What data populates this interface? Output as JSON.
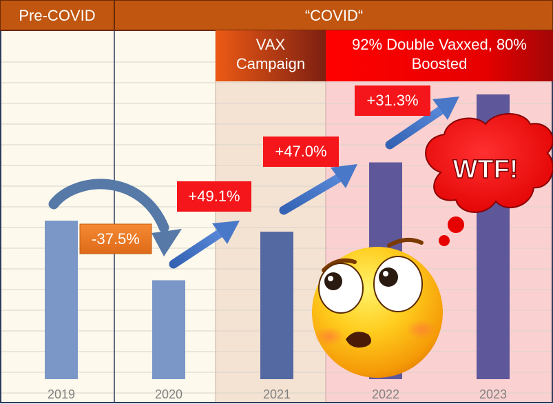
{
  "header": {
    "pre_covid": "Pre-COVID",
    "covid": "“COVID“"
  },
  "phases": {
    "vax": "VAX\nCampaign",
    "boosted": "92% Double Vaxxed, 80%\nBoosted"
  },
  "exclamation": "WTF!",
  "chart_data": {
    "type": "bar",
    "categories": [
      "2019",
      "2020",
      "2021",
      "2022",
      "2023"
    ],
    "values": [
      62,
      38.7,
      57.7,
      84.8,
      111.4
    ],
    "ylim": [
      0,
      120
    ],
    "grid": true,
    "annotations": [
      "-37.5%",
      "+49.1%",
      "+47.0%",
      "+31.3%"
    ],
    "colors": {
      "bar_light": "#7a97c8",
      "bar_mid": "#5469a2",
      "bar_dark": "#5e579a",
      "header_bg": "#c0560f",
      "pre_covid_bg": "#fdf9ec",
      "vax_bg": "#f4e2d2",
      "boosted_bg": "#fbd0d0",
      "label_red": "#f4161a",
      "label_orange": "#ee7b24",
      "arrow_blue": "#3e6fc4"
    }
  }
}
